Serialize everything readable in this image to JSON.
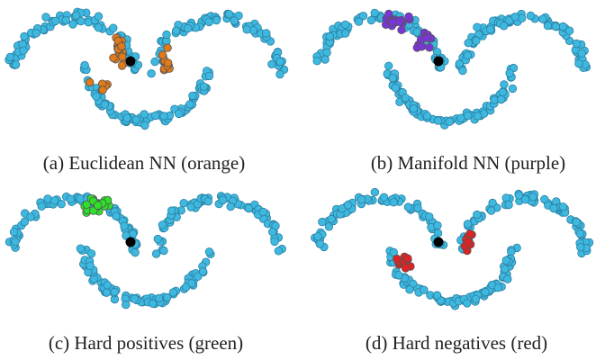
{
  "chart_data": [
    {
      "type": "scatter",
      "panel": "a",
      "caption": "(a) Euclidean NN (orange)",
      "highlight_color": "#e07a1a",
      "base_color": "#3fb8e0",
      "anchor_color": "#000000"
    },
    {
      "type": "scatter",
      "panel": "b",
      "caption": "(b) Manifold NN (purple)",
      "highlight_color": "#7a35d8",
      "base_color": "#3fb8e0",
      "anchor_color": "#000000"
    },
    {
      "type": "scatter",
      "panel": "c",
      "caption": "(c) Hard positives (green)",
      "highlight_color": "#2ee02a",
      "base_color": "#3fb8e0",
      "anchor_color": "#000000"
    },
    {
      "type": "scatter",
      "panel": "d",
      "caption": "(d) Hard negatives (red)",
      "highlight_color": "#e02222",
      "base_color": "#3fb8e0",
      "anchor_color": "#000000"
    }
  ]
}
